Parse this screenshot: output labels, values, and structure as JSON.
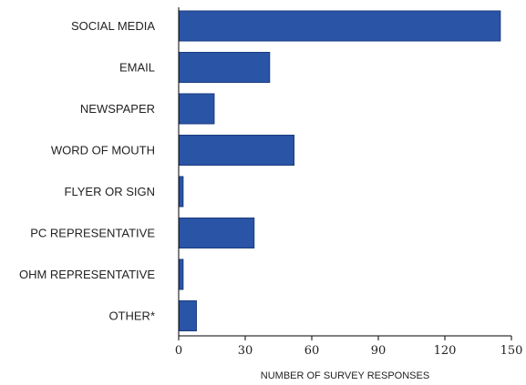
{
  "chart_data": {
    "type": "bar",
    "orientation": "horizontal",
    "categories": [
      "SOCIAL MEDIA",
      "EMAIL",
      "NEWSPAPER",
      "WORD OF MOUTH",
      "FLYER OR SIGN",
      "PC REPRESENTATIVE",
      "OHM REPRESENTATIVE",
      "OTHER*"
    ],
    "values": [
      145,
      41,
      16,
      52,
      2,
      34,
      2,
      8
    ],
    "xlabel": "NUMBER OF SURVEY RESPONSES",
    "ylabel": "",
    "xlim": [
      0,
      150
    ],
    "xticks": [
      0,
      30,
      60,
      90,
      120,
      150
    ],
    "grid": false,
    "legend": "none",
    "bar_color": "#2a54a5",
    "bar_border_color": "#1b3c80"
  }
}
